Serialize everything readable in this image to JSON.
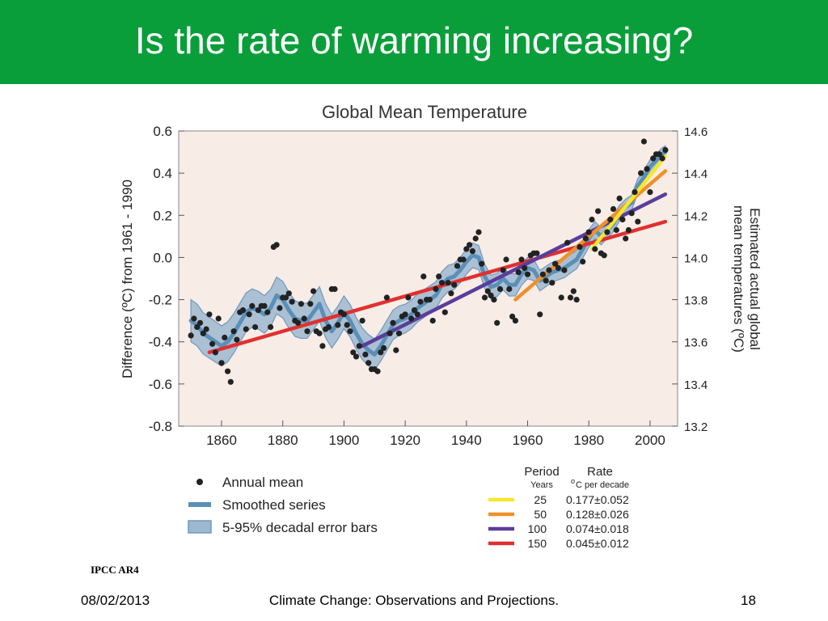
{
  "slide": {
    "title": "Is the rate of warming increasing?",
    "source_note": "IPCC AR4",
    "footer_date": "08/02/2013",
    "footer_center": "Climate Change: Observations and Projections.",
    "footer_page": "18",
    "header_color": "#0a9e3a"
  },
  "chart_data": {
    "type": "scatter",
    "title": "Global Mean Temperature",
    "ylabel": "Difference (ºC) from 1961 - 1990",
    "ylabel_right": "Estimated actual global mean temperatures (ºC)",
    "xlim": [
      1846,
      2009
    ],
    "ylim": [
      -0.8,
      0.6
    ],
    "ylim_right": [
      13.2,
      14.6
    ],
    "x_ticks": [
      1860,
      1880,
      1900,
      1920,
      1940,
      1960,
      1980,
      2000
    ],
    "y_ticks": [
      0.6,
      0.4,
      0.2,
      0.0,
      -0.2,
      -0.4,
      -0.6,
      -0.8
    ],
    "y_tick_labels": [
      "0.6",
      "0.4",
      "0.2",
      "0.0",
      "-0.2",
      "-0.4",
      "-0.6",
      "-0.8"
    ],
    "y_ticks_right": [
      14.6,
      14.4,
      14.2,
      14.0,
      13.8,
      13.6,
      13.4,
      13.2
    ],
    "y_tick_labels_right": [
      "14.6",
      "14.4",
      "14.2",
      "14.0",
      "13.8",
      "13.6",
      "13.4",
      "13.2"
    ],
    "grid": false,
    "plot_background": "#f7ece6",
    "series": [
      {
        "name": "Annual mean",
        "kind": "points",
        "color": "#222222",
        "x": [
          1850,
          1851,
          1852,
          1853,
          1854,
          1855,
          1856,
          1857,
          1858,
          1859,
          1860,
          1861,
          1862,
          1863,
          1864,
          1865,
          1866,
          1867,
          1868,
          1869,
          1870,
          1871,
          1872,
          1873,
          1874,
          1875,
          1876,
          1877,
          1878,
          1879,
          1880,
          1881,
          1882,
          1883,
          1884,
          1885,
          1886,
          1887,
          1888,
          1889,
          1890,
          1891,
          1892,
          1893,
          1894,
          1895,
          1896,
          1897,
          1898,
          1899,
          1900,
          1901,
          1902,
          1903,
          1904,
          1905,
          1906,
          1907,
          1908,
          1909,
          1910,
          1911,
          1912,
          1913,
          1914,
          1915,
          1916,
          1917,
          1918,
          1919,
          1920,
          1921,
          1922,
          1923,
          1924,
          1925,
          1926,
          1927,
          1928,
          1929,
          1930,
          1931,
          1932,
          1933,
          1934,
          1935,
          1936,
          1937,
          1938,
          1939,
          1940,
          1941,
          1942,
          1943,
          1944,
          1945,
          1946,
          1947,
          1948,
          1949,
          1950,
          1951,
          1952,
          1953,
          1954,
          1955,
          1956,
          1957,
          1958,
          1959,
          1960,
          1961,
          1962,
          1963,
          1964,
          1965,
          1966,
          1967,
          1968,
          1969,
          1970,
          1971,
          1972,
          1973,
          1974,
          1975,
          1976,
          1977,
          1978,
          1979,
          1980,
          1981,
          1982,
          1983,
          1984,
          1985,
          1986,
          1987,
          1988,
          1989,
          1990,
          1991,
          1992,
          1993,
          1994,
          1995,
          1996,
          1997,
          1998,
          1999,
          2000,
          2001,
          2002,
          2003,
          2004,
          2005
        ],
        "values": [
          -0.37,
          -0.29,
          -0.33,
          -0.31,
          -0.36,
          -0.34,
          -0.27,
          -0.41,
          -0.45,
          -0.29,
          -0.5,
          -0.38,
          -0.54,
          -0.59,
          -0.35,
          -0.39,
          -0.26,
          -0.25,
          -0.34,
          -0.27,
          -0.23,
          -0.33,
          -0.25,
          -0.23,
          -0.23,
          -0.26,
          -0.33,
          0.05,
          0.06,
          -0.24,
          -0.19,
          -0.19,
          -0.17,
          -0.21,
          -0.3,
          -0.31,
          -0.22,
          -0.29,
          -0.35,
          -0.22,
          -0.16,
          -0.35,
          -0.36,
          -0.42,
          -0.34,
          -0.33,
          -0.15,
          -0.15,
          -0.32,
          -0.26,
          -0.27,
          -0.32,
          -0.35,
          -0.45,
          -0.47,
          -0.42,
          -0.3,
          -0.46,
          -0.5,
          -0.53,
          -0.53,
          -0.54,
          -0.45,
          -0.43,
          -0.19,
          -0.36,
          -0.31,
          -0.44,
          -0.36,
          -0.28,
          -0.27,
          -0.19,
          -0.29,
          -0.25,
          -0.27,
          -0.21,
          -0.09,
          -0.2,
          -0.2,
          -0.3,
          -0.15,
          -0.09,
          -0.12,
          -0.26,
          -0.12,
          -0.17,
          -0.13,
          -0.04,
          -0.01,
          -0.01,
          0.04,
          0.06,
          0.03,
          0.09,
          0.12,
          -0.03,
          -0.19,
          -0.16,
          -0.18,
          -0.2,
          -0.31,
          -0.15,
          -0.06,
          -0.01,
          -0.15,
          -0.28,
          -0.3,
          -0.07,
          -0.01,
          -0.05,
          -0.08,
          0.01,
          0.02,
          0.02,
          -0.27,
          -0.08,
          -0.11,
          -0.06,
          -0.12,
          -0.03,
          -0.05,
          -0.19,
          -0.06,
          0.07,
          -0.19,
          -0.16,
          -0.2,
          0.05,
          -0.02,
          0.09,
          0.12,
          0.18,
          0.04,
          0.22,
          0.02,
          0.01,
          0.12,
          0.18,
          0.23,
          0.13,
          0.28,
          0.18,
          0.09,
          0.13,
          0.21,
          0.31,
          0.17,
          0.4,
          0.55,
          0.42,
          0.31,
          0.47,
          0.49,
          0.49,
          0.47,
          0.51
        ]
      },
      {
        "name": "Smoothed series",
        "kind": "line",
        "color": "#5a8fb8",
        "x": [
          1850,
          1852,
          1854,
          1856,
          1858,
          1860,
          1862,
          1864,
          1866,
          1868,
          1870,
          1872,
          1874,
          1876,
          1878,
          1880,
          1882,
          1884,
          1886,
          1888,
          1890,
          1892,
          1894,
          1896,
          1898,
          1900,
          1902,
          1904,
          1906,
          1908,
          1910,
          1912,
          1914,
          1916,
          1918,
          1920,
          1922,
          1924,
          1926,
          1928,
          1930,
          1932,
          1934,
          1936,
          1938,
          1940,
          1942,
          1944,
          1946,
          1948,
          1950,
          1952,
          1954,
          1956,
          1958,
          1960,
          1962,
          1964,
          1966,
          1968,
          1970,
          1972,
          1974,
          1976,
          1978,
          1980,
          1982,
          1984,
          1986,
          1988,
          1990,
          1992,
          1994,
          1996,
          1998,
          2000,
          2002,
          2004,
          2005
        ],
        "values": [
          -0.3,
          -0.32,
          -0.36,
          -0.38,
          -0.4,
          -0.42,
          -0.4,
          -0.36,
          -0.31,
          -0.26,
          -0.24,
          -0.25,
          -0.27,
          -0.24,
          -0.18,
          -0.2,
          -0.25,
          -0.29,
          -0.3,
          -0.3,
          -0.26,
          -0.22,
          -0.3,
          -0.35,
          -0.31,
          -0.26,
          -0.3,
          -0.36,
          -0.41,
          -0.44,
          -0.46,
          -0.42,
          -0.37,
          -0.32,
          -0.3,
          -0.29,
          -0.27,
          -0.24,
          -0.22,
          -0.2,
          -0.18,
          -0.13,
          -0.1,
          -0.09,
          -0.06,
          -0.02,
          0.01,
          0.0,
          -0.09,
          -0.14,
          -0.13,
          -0.1,
          -0.13,
          -0.13,
          -0.08,
          -0.05,
          -0.06,
          -0.11,
          -0.09,
          -0.07,
          -0.06,
          -0.05,
          -0.03,
          -0.01,
          0.04,
          0.09,
          0.13,
          0.1,
          0.13,
          0.16,
          0.21,
          0.24,
          0.26,
          0.34,
          0.38,
          0.43,
          0.46,
          0.49,
          0.5
        ]
      },
      {
        "name": "5-95% decadal error bars",
        "kind": "band",
        "color": "#6f99bd",
        "halfwidth_start": 0.1,
        "halfwidth_end": 0.03
      }
    ],
    "trend_lines": [
      {
        "period": "150",
        "rate": "0.045±0.012",
        "color": "#e03030",
        "x": [
          1856,
          2005
        ],
        "y": [
          -0.45,
          0.17
        ]
      },
      {
        "period": "100",
        "rate": "0.074±0.018",
        "color": "#5b3d9c",
        "x": [
          1906,
          2005
        ],
        "y": [
          -0.42,
          0.3
        ]
      },
      {
        "period": "50",
        "rate": "0.128±0.026",
        "color": "#f0902a",
        "x": [
          1956,
          2005
        ],
        "y": [
          -0.2,
          0.41
        ]
      },
      {
        "period": "25",
        "rate": "0.177±0.052",
        "color": "#f7e72a",
        "x": [
          1981,
          2005
        ],
        "y": [
          0.04,
          0.48
        ]
      }
    ],
    "legend": {
      "placement": "bottom-left",
      "items": [
        {
          "label": "Annual mean",
          "symbol": "dot"
        },
        {
          "label": "Smoothed series",
          "symbol": "line"
        },
        {
          "label": "5-95% decadal error bars",
          "symbol": "band"
        }
      ]
    },
    "rate_table": {
      "placement": "bottom-right",
      "header_period": "Period",
      "header_rate": "Rate",
      "sub_period": "Years",
      "sub_rate_sup": "o",
      "sub_rate": "C per decade",
      "rows": [
        {
          "period": "25",
          "rate": "0.177±0.052",
          "color": "#f7e72a"
        },
        {
          "period": "50",
          "rate": "0.128±0.026",
          "color": "#f0902a"
        },
        {
          "period": "100",
          "rate": "0.074±0.018",
          "color": "#5b3d9c"
        },
        {
          "period": "150",
          "rate": "0.045±0.012",
          "color": "#e03030"
        }
      ]
    }
  }
}
